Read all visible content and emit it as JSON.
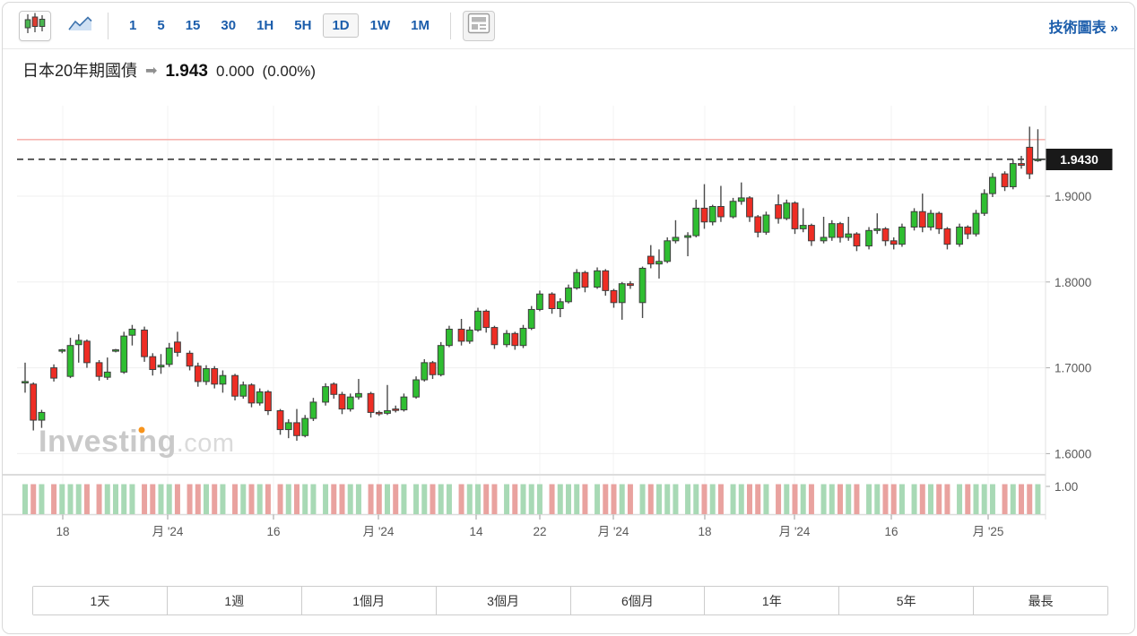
{
  "colors": {
    "accent_blue": "#1b5dab",
    "up": "#2fbe31",
    "down": "#ee2d24",
    "volume_up": "#a8d9b5",
    "volume_down": "#e9a29f",
    "badge_bg": "#191919",
    "badge_text": "#ffffff",
    "high_line": "#f6b5b0",
    "dashed_line": "#3a3a3a",
    "grid": "#efefef",
    "axis_text": "#595959",
    "watermark_main": "#c9c9c9",
    "watermark_suffix": "#dadada",
    "watermark_dot": "#f7941d"
  },
  "toolbar": {
    "chart_type_buttons": [
      {
        "name": "candlestick-chart",
        "icon": "candlestick-icon",
        "selected": true
      },
      {
        "name": "area-chart",
        "icon": "area-chart-icon",
        "selected": false
      }
    ],
    "intervals": [
      {
        "label": "1",
        "selected": false
      },
      {
        "label": "5",
        "selected": false
      },
      {
        "label": "15",
        "selected": false
      },
      {
        "label": "30",
        "selected": false
      },
      {
        "label": "1H",
        "selected": false
      },
      {
        "label": "5H",
        "selected": false
      },
      {
        "label": "1D",
        "selected": true
      },
      {
        "label": "1W",
        "selected": false
      },
      {
        "label": "1M",
        "selected": false
      }
    ],
    "news_button": {
      "icon": "news-layout-icon"
    },
    "tech_chart_link": "技術圖表 »"
  },
  "header": {
    "title": "日本20年期國債",
    "arrow": "➡",
    "price": "1.943",
    "change": "0.000",
    "change_percent": "(0.00%)"
  },
  "range_buttons": [
    {
      "label": "1天"
    },
    {
      "label": "1週"
    },
    {
      "label": "1個月"
    },
    {
      "label": "3個月"
    },
    {
      "label": "6個月"
    },
    {
      "label": "1年"
    },
    {
      "label": "5年"
    },
    {
      "label": "最長"
    }
  ],
  "chart_data": {
    "type": "candlestick",
    "title": "日本20年期國債",
    "interval": "1D",
    "last_price": 1.943,
    "price_line": {
      "value": 1.943,
      "label": "1.9430",
      "style": "dashed"
    },
    "high_line": {
      "value": 1.966
    },
    "watermark": {
      "main": "Investing",
      ".suffix": ".com",
      "suffix": ".com"
    },
    "y_axis": {
      "ticks": [
        {
          "value": 1.9,
          "label": "1.9000"
        },
        {
          "value": 1.8,
          "label": "1.8000"
        },
        {
          "value": 1.7,
          "label": "1.7000"
        },
        {
          "value": 1.6,
          "label": "1.6000"
        }
      ],
      "volume_tick": {
        "label": "1.00"
      },
      "range": [
        1.575,
        1.99
      ]
    },
    "x_axis": {
      "labels": [
        "18",
        "月 '24",
        "16",
        "月 '24",
        "14",
        "22",
        "月 '24",
        "18",
        "月 '24",
        "16",
        "月 '25"
      ]
    },
    "volume": {
      "uniform_value": 1.0,
      "note": "all volume bars equal height, colored by candle direction"
    },
    "first_week_size": 3,
    "week_size": 5,
    "candles": [
      [
        1.683,
        1.706,
        1.671,
        1.684
      ],
      [
        1.681,
        1.683,
        1.627,
        1.639
      ],
      [
        1.639,
        1.651,
        1.63,
        1.648
      ],
      [
        1.7,
        1.704,
        1.684,
        1.688
      ],
      [
        1.72,
        1.722,
        1.717,
        1.721
      ],
      [
        1.69,
        1.735,
        1.688,
        1.726
      ],
      [
        1.727,
        1.739,
        1.706,
        1.732
      ],
      [
        1.731,
        1.733,
        1.7,
        1.706
      ],
      [
        1.706,
        1.709,
        1.685,
        1.69
      ],
      [
        1.689,
        1.712,
        1.686,
        1.695
      ],
      [
        1.72,
        1.722,
        1.718,
        1.721
      ],
      [
        1.695,
        1.742,
        1.693,
        1.737
      ],
      [
        1.738,
        1.75,
        1.726,
        1.745
      ],
      [
        1.744,
        1.748,
        1.707,
        1.713
      ],
      [
        1.713,
        1.717,
        1.691,
        1.698
      ],
      [
        1.701,
        1.716,
        1.693,
        1.703
      ],
      [
        1.704,
        1.729,
        1.701,
        1.723
      ],
      [
        1.73,
        1.742,
        1.713,
        1.718
      ],
      [
        1.717,
        1.72,
        1.697,
        1.702
      ],
      [
        1.702,
        1.706,
        1.678,
        1.684
      ],
      [
        1.684,
        1.703,
        1.68,
        1.699
      ],
      [
        1.699,
        1.702,
        1.676,
        1.681
      ],
      [
        1.681,
        1.697,
        1.671,
        1.691
      ],
      [
        1.691,
        1.693,
        1.662,
        1.667
      ],
      [
        1.667,
        1.684,
        1.664,
        1.68
      ],
      [
        1.68,
        1.682,
        1.654,
        1.659
      ],
      [
        1.659,
        1.676,
        1.656,
        1.672
      ],
      [
        1.672,
        1.674,
        1.645,
        1.65
      ],
      [
        1.65,
        1.652,
        1.622,
        1.628
      ],
      [
        1.628,
        1.64,
        1.618,
        1.636
      ],
      [
        1.636,
        1.652,
        1.615,
        1.621
      ],
      [
        1.621,
        1.645,
        1.619,
        1.641
      ],
      [
        1.641,
        1.665,
        1.638,
        1.66
      ],
      [
        1.66,
        1.682,
        1.656,
        1.678
      ],
      [
        1.681,
        1.683,
        1.664,
        1.669
      ],
      [
        1.669,
        1.672,
        1.646,
        1.652
      ],
      [
        1.652,
        1.67,
        1.649,
        1.666
      ],
      [
        1.666,
        1.687,
        1.663,
        1.67
      ],
      [
        1.67,
        1.672,
        1.642,
        1.648
      ],
      [
        1.648,
        1.65,
        1.644,
        1.647
      ],
      [
        1.647,
        1.68,
        1.645,
        1.65
      ],
      [
        1.652,
        1.656,
        1.648,
        1.651
      ],
      [
        1.651,
        1.67,
        1.649,
        1.666
      ],
      [
        1.666,
        1.69,
        1.664,
        1.686
      ],
      [
        1.686,
        1.71,
        1.684,
        1.706
      ],
      [
        1.706,
        1.708,
        1.687,
        1.692
      ],
      [
        1.692,
        1.73,
        1.69,
        1.726
      ],
      [
        1.726,
        1.749,
        1.724,
        1.745
      ],
      [
        1.745,
        1.757,
        1.726,
        1.731
      ],
      [
        1.731,
        1.748,
        1.728,
        1.744
      ],
      [
        1.744,
        1.77,
        1.742,
        1.766
      ],
      [
        1.766,
        1.768,
        1.741,
        1.747
      ],
      [
        1.747,
        1.749,
        1.722,
        1.727
      ],
      [
        1.727,
        1.744,
        1.724,
        1.74
      ],
      [
        1.74,
        1.742,
        1.721,
        1.726
      ],
      [
        1.726,
        1.75,
        1.723,
        1.746
      ],
      [
        1.746,
        1.772,
        1.744,
        1.768
      ],
      [
        1.768,
        1.79,
        1.766,
        1.786
      ],
      [
        1.786,
        1.788,
        1.763,
        1.769
      ],
      [
        1.769,
        1.781,
        1.759,
        1.777
      ],
      [
        1.777,
        1.797,
        1.775,
        1.793
      ],
      [
        1.793,
        1.815,
        1.791,
        1.811
      ],
      [
        1.811,
        1.813,
        1.788,
        1.794
      ],
      [
        1.794,
        1.817,
        1.792,
        1.813
      ],
      [
        1.813,
        1.815,
        1.784,
        1.79
      ],
      [
        1.79,
        1.792,
        1.77,
        1.776
      ],
      [
        1.776,
        1.8,
        1.756,
        1.798
      ],
      [
        1.798,
        1.801,
        1.792,
        1.796
      ],
      [
        1.776,
        1.818,
        1.758,
        1.816
      ],
      [
        1.83,
        1.843,
        1.816,
        1.821
      ],
      [
        1.821,
        1.838,
        1.804,
        1.824
      ],
      [
        1.824,
        1.852,
        1.822,
        1.848
      ],
      [
        1.848,
        1.872,
        1.845,
        1.852
      ],
      [
        1.852,
        1.858,
        1.83,
        1.854
      ],
      [
        1.854,
        1.896,
        1.852,
        1.886
      ],
      [
        1.886,
        1.914,
        1.862,
        1.87
      ],
      [
        1.87,
        1.89,
        1.866,
        1.888
      ],
      [
        1.888,
        1.912,
        1.87,
        1.876
      ],
      [
        1.876,
        1.898,
        1.874,
        1.894
      ],
      [
        1.894,
        1.916,
        1.89,
        1.898
      ],
      [
        1.898,
        1.9,
        1.87,
        1.876
      ],
      [
        1.876,
        1.878,
        1.852,
        1.858
      ],
      [
        1.858,
        1.882,
        1.855,
        1.878
      ],
      [
        1.89,
        1.902,
        1.868,
        1.874
      ],
      [
        1.874,
        1.896,
        1.872,
        1.892
      ],
      [
        1.892,
        1.894,
        1.856,
        1.862
      ],
      [
        1.862,
        1.886,
        1.858,
        1.866
      ],
      [
        1.866,
        1.868,
        1.842,
        1.848
      ],
      [
        1.848,
        1.876,
        1.845,
        1.852
      ],
      [
        1.852,
        1.872,
        1.848,
        1.868
      ],
      [
        1.868,
        1.87,
        1.846,
        1.852
      ],
      [
        1.852,
        1.876,
        1.848,
        1.856
      ],
      [
        1.856,
        1.858,
        1.836,
        1.842
      ],
      [
        1.842,
        1.864,
        1.838,
        1.86
      ],
      [
        1.86,
        1.88,
        1.856,
        1.862
      ],
      [
        1.862,
        1.864,
        1.842,
        1.848
      ],
      [
        1.848,
        1.852,
        1.838,
        1.844
      ],
      [
        1.844,
        1.868,
        1.841,
        1.864
      ],
      [
        1.864,
        1.886,
        1.86,
        1.882
      ],
      [
        1.882,
        1.903,
        1.858,
        1.864
      ],
      [
        1.864,
        1.884,
        1.86,
        1.88
      ],
      [
        1.88,
        1.882,
        1.856,
        1.862
      ],
      [
        1.862,
        1.864,
        1.838,
        1.844
      ],
      [
        1.844,
        1.868,
        1.841,
        1.864
      ],
      [
        1.864,
        1.866,
        1.85,
        1.856
      ],
      [
        1.856,
        1.884,
        1.853,
        1.88
      ],
      [
        1.88,
        1.908,
        1.877,
        1.903
      ],
      [
        1.903,
        1.927,
        1.899,
        1.922
      ],
      [
        1.926,
        1.929,
        1.906,
        1.911
      ],
      [
        1.911,
        1.943,
        1.908,
        1.938
      ],
      [
        1.938,
        1.947,
        1.932,
        1.936
      ],
      [
        1.957,
        1.981,
        1.92,
        1.926
      ],
      [
        1.943,
        1.978,
        1.94,
        1.943
      ]
    ]
  }
}
